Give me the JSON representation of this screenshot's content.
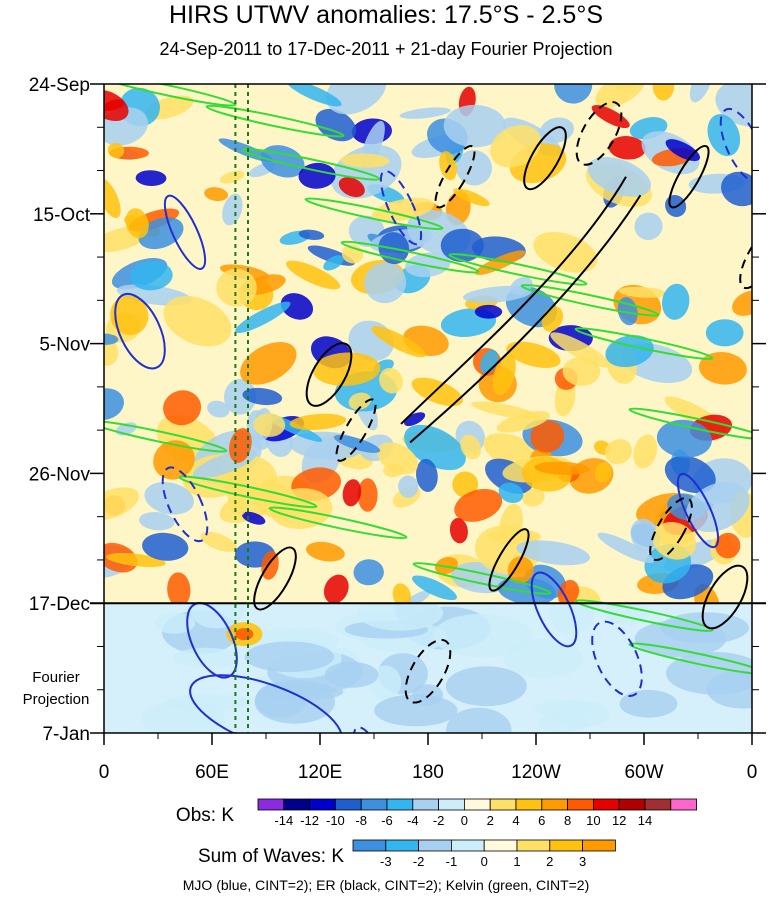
{
  "title": "HIRS UTWV anomalies: 17.5°S - 2.5°S",
  "subtitle": "24-Sep-2011 to 17-Dec-2011 + 21-day Fourier Projection",
  "projection_label": [
    "Fourier",
    "Projection"
  ],
  "footer": "MJO (blue, CINT=2); ER (black, CINT=2); Kelvin (green, CINT=2)",
  "chart_data": {
    "type": "heatmap",
    "x_ticks": [
      "0",
      "60E",
      "120E",
      "180",
      "120W",
      "60W",
      "0"
    ],
    "x_range_deg": [
      0,
      360
    ],
    "y_ticks": [
      "24-Sep",
      "15-Oct",
      "5-Nov",
      "26-Nov",
      "17-Dec",
      "7-Jan"
    ],
    "y_range_days": [
      0,
      105
    ],
    "y_tick_days": [
      0,
      21,
      42,
      63,
      84,
      105
    ],
    "observation_end": "17-Dec",
    "observation_end_day": 84,
    "marker_lines_lon": [
      73,
      80
    ],
    "obs_colorbar": {
      "label": "Obs: K",
      "ticks": [
        "-14",
        "-12",
        "-10",
        "-8",
        "-6",
        "-4",
        "-2",
        "0",
        "2",
        "4",
        "6",
        "8",
        "10",
        "12",
        "14"
      ],
      "colors": [
        "#8a2be2",
        "#00008b",
        "#0000cd",
        "#1e5fd0",
        "#3d8fe0",
        "#33b5f0",
        "#a8d0f0",
        "#cceefa",
        "#fffadd",
        "#ffe066",
        "#ffc20e",
        "#ff9a00",
        "#ff5a00",
        "#e60000",
        "#b20000",
        "#a03030",
        "#ff66cc"
      ]
    },
    "waves_colorbar": {
      "label": "Sum of Waves: K",
      "ticks": [
        "-3",
        "-2",
        "-1",
        "0",
        "1",
        "2",
        "3"
      ],
      "colors": [
        "#3d8fe0",
        "#33b5f0",
        "#a8d0f0",
        "#cceefa",
        "#fffadd",
        "#ffe066",
        "#ffc20e",
        "#ff9a00"
      ]
    },
    "contours": {
      "MJO": {
        "color": "#1f2fd0",
        "cint": 2
      },
      "ER": {
        "color": "#000000",
        "cint": 2
      },
      "Kelvin": {
        "color": "#33dd33",
        "cint": 2
      }
    }
  }
}
